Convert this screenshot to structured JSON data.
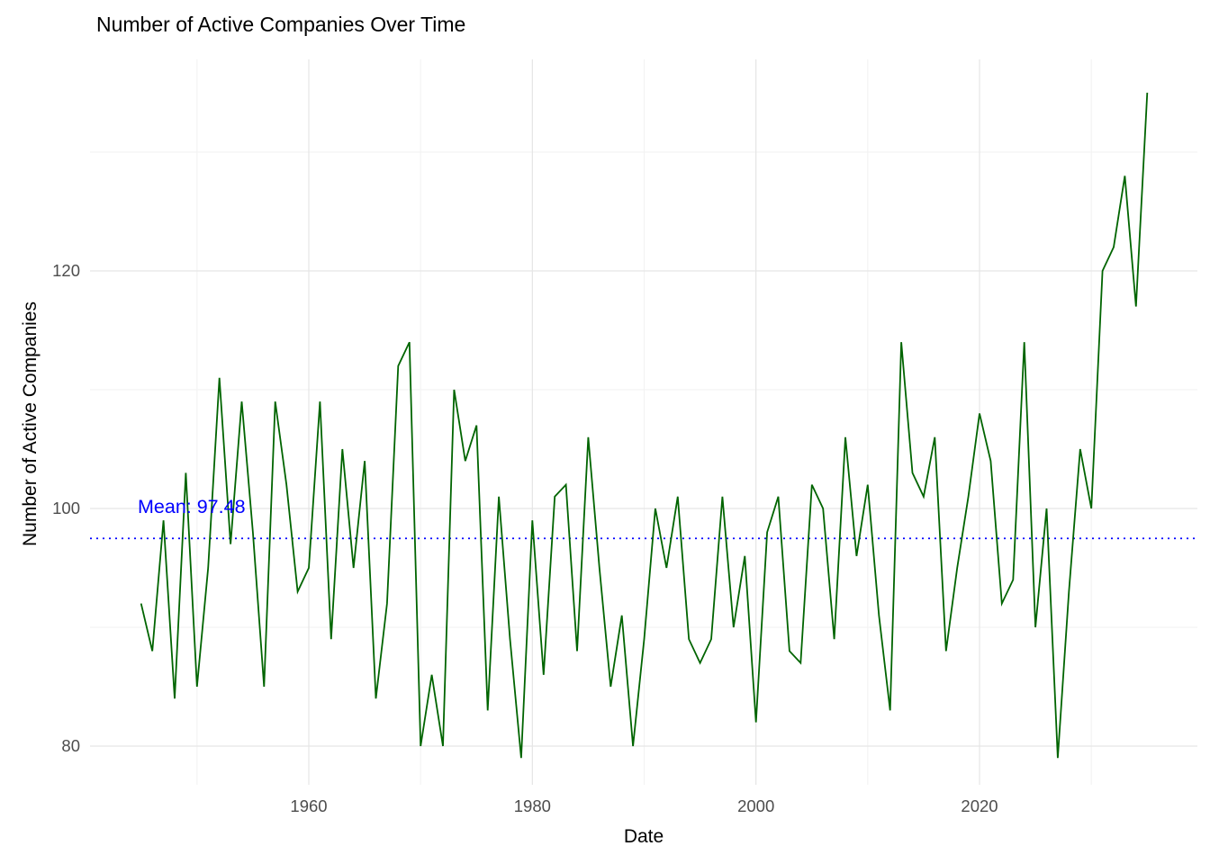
{
  "colors": {
    "series_line": "#006400",
    "mean_line": "#0000ff",
    "annotation_text": "#0000ff",
    "tick_text": "#4d4d4d",
    "title_text": "#000000",
    "grid_major": "#e5e5e5",
    "grid_minor": "#f2f2f2",
    "background": "#ffffff"
  },
  "chart_data": {
    "type": "line",
    "title": "Number of Active Companies Over Time",
    "xlabel": "Date",
    "ylabel": "Number of Active Companies",
    "mean": 97.48,
    "mean_label": "Mean: 97.48",
    "legend": "none",
    "grid": true,
    "x_ticks": [
      1960,
      1980,
      2000,
      2020
    ],
    "x_minor": [
      1950,
      1970,
      1990,
      2010,
      2030
    ],
    "y_ticks": [
      80,
      100,
      120
    ],
    "y_minor": [
      90,
      110,
      130
    ],
    "xlim": [
      1940.4,
      2039.5
    ],
    "ylim": [
      76.7,
      137.8
    ],
    "x": [
      1945,
      1946,
      1947,
      1948,
      1949,
      1950,
      1951,
      1952,
      1953,
      1954,
      1955,
      1956,
      1957,
      1958,
      1959,
      1960,
      1961,
      1962,
      1963,
      1964,
      1965,
      1966,
      1967,
      1968,
      1969,
      1970,
      1971,
      1972,
      1973,
      1974,
      1975,
      1976,
      1977,
      1978,
      1979,
      1980,
      1981,
      1982,
      1983,
      1984,
      1985,
      1986,
      1987,
      1988,
      1989,
      1990,
      1991,
      1992,
      1993,
      1994,
      1995,
      1996,
      1997,
      1998,
      1999,
      2000,
      2001,
      2002,
      2003,
      2004,
      2005,
      2006,
      2007,
      2008,
      2009,
      2010,
      2011,
      2012,
      2013,
      2014,
      2015,
      2016,
      2017,
      2018,
      2019,
      2020,
      2021,
      2022,
      2023,
      2024,
      2025,
      2026,
      2027,
      2028,
      2029,
      2030,
      2031,
      2032,
      2033,
      2034,
      2035
    ],
    "values": [
      92,
      88,
      99,
      84,
      103,
      85,
      95,
      111,
      97,
      109,
      98,
      85,
      109,
      102,
      93,
      95,
      109,
      89,
      105,
      95,
      104,
      84,
      92,
      112,
      114,
      80,
      86,
      80,
      110,
      104,
      107,
      83,
      101,
      89,
      79,
      99,
      86,
      101,
      102,
      88,
      106,
      95,
      85,
      91,
      80,
      89,
      100,
      95,
      101,
      89,
      87,
      89,
      101,
      90,
      96,
      82,
      98,
      101,
      88,
      87,
      102,
      100,
      89,
      106,
      96,
      102,
      91,
      83,
      114,
      103,
      101,
      106,
      88,
      95,
      101,
      108,
      104,
      92,
      94,
      114,
      90,
      100,
      79,
      93,
      105,
      100,
      120,
      122,
      128,
      117,
      135
    ]
  }
}
